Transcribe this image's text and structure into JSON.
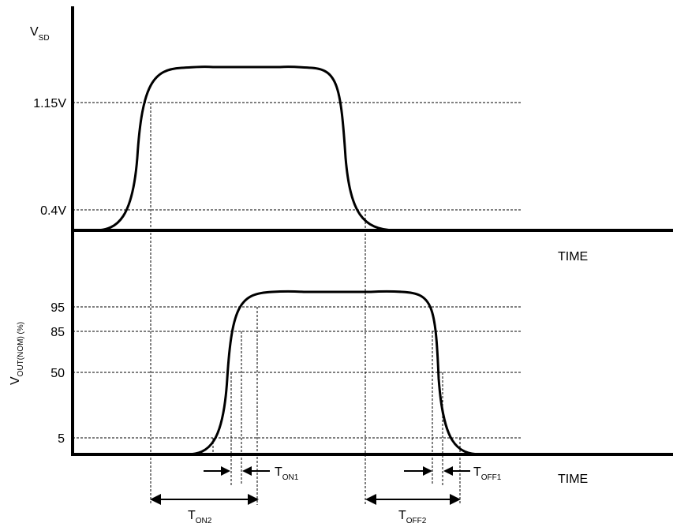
{
  "top_axis": {
    "y_label_main": "V",
    "y_label_sub": "SD",
    "levels": [
      "1.15V",
      "0.4V"
    ],
    "x_label": "TIME"
  },
  "bottom_axis": {
    "y_label_main": "V",
    "y_label_sub": "OUT(NOM) (%)",
    "levels": [
      "95",
      "85",
      "50",
      "5"
    ],
    "x_label": "TIME"
  },
  "timings": {
    "ton1": {
      "main": "T",
      "sub": "ON1"
    },
    "toff1": {
      "main": "T",
      "sub": "OFF1"
    },
    "ton2": {
      "main": "T",
      "sub": "ON2"
    },
    "toff2": {
      "main": "T",
      "sub": "OFF2"
    }
  }
}
